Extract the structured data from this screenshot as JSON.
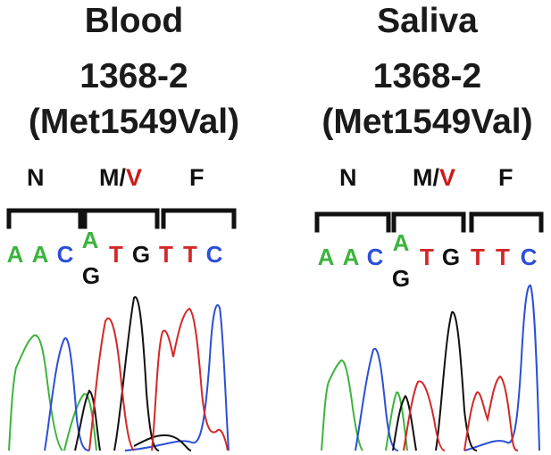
{
  "colors": {
    "A": "#3cb43c",
    "C": "#2b4fd6",
    "G": "#111111",
    "T": "#d42828",
    "variant": "#cc1a1a"
  },
  "panels": [
    {
      "sample": "Blood",
      "id": "1368-2",
      "mutation": "(Met1549Val)",
      "codons": [
        {
          "aa": "N"
        },
        {
          "aa_prefix": "M/",
          "aa_variant": "V"
        },
        {
          "aa": "F"
        }
      ],
      "bases": [
        "A",
        "A",
        "C",
        "A",
        "G",
        "T",
        "G",
        "T",
        "T",
        "C"
      ]
    },
    {
      "sample": "Saliva",
      "id": "1368-2",
      "mutation": "(Met1549Val)",
      "codons": [
        {
          "aa": "N"
        },
        {
          "aa_prefix": "M/",
          "aa_variant": "V"
        },
        {
          "aa": "F"
        }
      ],
      "bases": [
        "A",
        "A",
        "C",
        "A",
        "G",
        "T",
        "G",
        "T",
        "T",
        "C"
      ]
    }
  ]
}
